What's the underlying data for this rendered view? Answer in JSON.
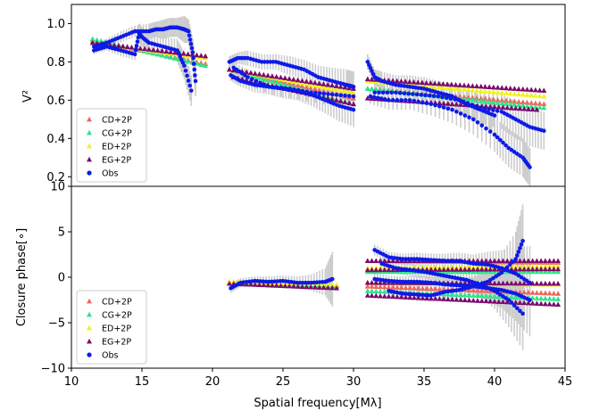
{
  "chart_data": [
    {
      "type": "scatter",
      "panel": "top",
      "ylabel": "V²",
      "xlim": [
        10,
        45
      ],
      "ylim": [
        0.15,
        1.1
      ],
      "yticks": [
        0.2,
        0.4,
        0.6,
        0.8,
        1.0
      ],
      "ytick_labels": [
        "0.2",
        "0.4",
        "0.6",
        "0.8",
        "1.0"
      ],
      "legend": {
        "placement": "lower-left",
        "entries": [
          {
            "label": "CD+2P",
            "marker": "triangle",
            "color": "#f0655a"
          },
          {
            "label": "CG+2P",
            "marker": "triangle",
            "color": "#25e889"
          },
          {
            "label": "ED+2P",
            "marker": "triangle",
            "color": "#f2f21a"
          },
          {
            "label": "EG+2P",
            "marker": "triangle",
            "color": "#7a0a6e"
          },
          {
            "label": "Obs",
            "marker": "dot",
            "color": "#0d1ae8"
          }
        ]
      },
      "series": [
        {
          "name": "CD+2P",
          "color": "#f0655a",
          "segments": [
            {
              "x": [
                11.5,
                19.5
              ],
              "y": [
                0.91,
                0.79
              ]
            },
            {
              "x": [
                21.2,
                30.0
              ],
              "y": [
                0.76,
                0.61
              ]
            },
            {
              "x": [
                31.0,
                43.5
              ],
              "y": [
                0.66,
                0.58
              ]
            }
          ]
        },
        {
          "name": "CG+2P",
          "color": "#25e889",
          "segments": [
            {
              "x": [
                11.5,
                19.5
              ],
              "y": [
                0.92,
                0.78
              ]
            },
            {
              "x": [
                21.2,
                30.0
              ],
              "y": [
                0.76,
                0.58
              ]
            },
            {
              "x": [
                31.0,
                43.5
              ],
              "y": [
                0.66,
                0.56
              ]
            }
          ]
        },
        {
          "name": "ED+2P",
          "color": "#f2f21a",
          "segments": [
            {
              "x": [
                11.5,
                19.5
              ],
              "y": [
                0.9,
                0.82
              ]
            },
            {
              "x": [
                21.2,
                30.0
              ],
              "y": [
                0.76,
                0.64
              ]
            },
            {
              "x": [
                31.0,
                43.5
              ],
              "y": [
                0.7,
                0.62
              ]
            }
          ]
        },
        {
          "name": "EG+2P",
          "color": "#7a0a6e",
          "segments": [
            {
              "x": [
                11.5,
                19.5
              ],
              "y": [
                0.9,
                0.83
              ]
            },
            {
              "x": [
                21.2,
                30.0
              ],
              "y": [
                0.76,
                0.66
              ]
            },
            {
              "x": [
                31.0,
                43.5
              ],
              "y": [
                0.71,
                0.65
              ]
            },
            {
              "x": [
                21.5,
                30.0
              ],
              "y": [
                0.72,
                0.58
              ]
            },
            {
              "x": [
                31.0,
                43.0
              ],
              "y": [
                0.61,
                0.55
              ]
            }
          ]
        }
      ],
      "observations": {
        "name": "Obs",
        "color": "#0d1ae8",
        "errorbar_color": "#cccccc",
        "segments": [
          {
            "x": [
              11.6,
              12.5,
              13.5,
              14.5,
              15.5,
              16.0,
              16.5,
              17.0,
              17.5,
              18.0,
              18.3,
              18.6,
              18.8
            ],
            "y": [
              0.88,
              0.9,
              0.93,
              0.96,
              0.96,
              0.97,
              0.97,
              0.98,
              0.98,
              0.97,
              0.96,
              0.85,
              0.7
            ],
            "err": [
              0.02,
              0.02,
              0.03,
              0.03,
              0.04,
              0.04,
              0.05,
              0.05,
              0.05,
              0.07,
              0.06,
              0.07,
              0.08
            ]
          },
          {
            "x": [
              11.6,
              12.5,
              13.5,
              14.5,
              14.8,
              15.0,
              15.5,
              16.5,
              17.5,
              18.0,
              18.5
            ],
            "y": [
              0.86,
              0.88,
              0.86,
              0.84,
              0.95,
              0.93,
              0.9,
              0.88,
              0.86,
              0.78,
              0.65
            ],
            "err": [
              0.02,
              0.02,
              0.03,
              0.03,
              0.05,
              0.05,
              0.05,
              0.05,
              0.06,
              0.07,
              0.08
            ]
          },
          {
            "x": [
              21.2,
              21.8,
              22.5,
              23.5,
              24.5,
              25.5,
              26.5,
              27.5,
              28.5,
              29.5,
              30.0
            ],
            "y": [
              0.8,
              0.82,
              0.82,
              0.8,
              0.8,
              0.78,
              0.76,
              0.72,
              0.7,
              0.68,
              0.67
            ],
            "err": [
              0.03,
              0.03,
              0.04,
              0.04,
              0.04,
              0.05,
              0.05,
              0.06,
              0.07,
              0.08,
              0.08
            ]
          },
          {
            "x": [
              21.3,
              22.0,
              23.0,
              24.0,
              25.0,
              26.0,
              27.0,
              28.0,
              29.0,
              30.0
            ],
            "y": [
              0.73,
              0.7,
              0.68,
              0.67,
              0.66,
              0.65,
              0.63,
              0.6,
              0.57,
              0.55
            ],
            "err": [
              0.03,
              0.03,
              0.04,
              0.04,
              0.05,
              0.05,
              0.06,
              0.07,
              0.08,
              0.09
            ]
          },
          {
            "x": [
              21.5,
              22.5,
              24.0,
              25.5,
              27.0,
              28.5,
              30.0
            ],
            "y": [
              0.77,
              0.72,
              0.67,
              0.66,
              0.64,
              0.63,
              0.62
            ],
            "err": [
              0.03,
              0.04,
              0.04,
              0.05,
              0.05,
              0.06,
              0.07
            ]
          },
          {
            "x": [
              31.0,
              31.5,
              32.0,
              33.0,
              34.0,
              35.0,
              36.0,
              37.0,
              38.0,
              39.0,
              40.0
            ],
            "y": [
              0.8,
              0.72,
              0.7,
              0.68,
              0.67,
              0.66,
              0.64,
              0.62,
              0.58,
              0.55,
              0.52
            ],
            "err": [
              0.04,
              0.04,
              0.05,
              0.05,
              0.06,
              0.06,
              0.06,
              0.07,
              0.07,
              0.08,
              0.09
            ]
          },
          {
            "x": [
              31.2,
              32.5,
              34.0,
              35.5,
              37.0,
              38.5,
              40.0,
              41.0,
              42.0,
              42.5
            ],
            "y": [
              0.62,
              0.6,
              0.6,
              0.58,
              0.55,
              0.5,
              0.42,
              0.35,
              0.3,
              0.25
            ],
            "err": [
              0.04,
              0.05,
              0.05,
              0.06,
              0.07,
              0.08,
              0.09,
              0.1,
              0.1,
              0.1
            ]
          },
          {
            "x": [
              31.5,
              33.0,
              34.5,
              36.0,
              37.5,
              39.0,
              40.5,
              41.5,
              42.5,
              43.5
            ],
            "y": [
              0.64,
              0.64,
              0.63,
              0.62,
              0.6,
              0.56,
              0.54,
              0.5,
              0.46,
              0.44
            ],
            "err": [
              0.04,
              0.05,
              0.05,
              0.06,
              0.07,
              0.08,
              0.09,
              0.1,
              0.1,
              0.1
            ]
          }
        ]
      }
    },
    {
      "type": "scatter",
      "panel": "bottom",
      "ylabel": "Closure phase[∘]",
      "xlabel": "Spatial frequency[Mλ]",
      "xlim": [
        10,
        45
      ],
      "ylim": [
        -10,
        10
      ],
      "xticks": [
        10,
        15,
        20,
        25,
        30,
        35,
        40,
        45
      ],
      "xtick_labels": [
        "10",
        "15",
        "20",
        "25",
        "30",
        "35",
        "40",
        "45"
      ],
      "yticks": [
        -10,
        -5,
        0,
        5,
        10
      ],
      "ytick_labels": [
        "−10",
        "−5",
        "0",
        "5",
        "10"
      ],
      "legend": {
        "placement": "lower-left",
        "entries": [
          {
            "label": "CD+2P",
            "marker": "triangle",
            "color": "#f0655a"
          },
          {
            "label": "CG+2P",
            "marker": "triangle",
            "color": "#25e889"
          },
          {
            "label": "ED+2P",
            "marker": "triangle",
            "color": "#f2f21a"
          },
          {
            "label": "EG+2P",
            "marker": "triangle",
            "color": "#7a0a6e"
          },
          {
            "label": "Obs",
            "marker": "dot",
            "color": "#0d1ae8"
          }
        ]
      },
      "series": [
        {
          "name": "CD+2P",
          "color": "#f0655a",
          "segments": [
            {
              "x": [
                21.2,
                28.8
              ],
              "y": [
                -0.5,
                -0.9
              ]
            },
            {
              "x": [
                31.0,
                44.5
              ],
              "y": [
                1.8,
                1.6
              ]
            },
            {
              "x": [
                31.0,
                44.5
              ],
              "y": [
                -1.0,
                -1.8
              ]
            }
          ]
        },
        {
          "name": "CG+2P",
          "color": "#25e889",
          "segments": [
            {
              "x": [
                21.2,
                28.8
              ],
              "y": [
                -0.6,
                -1.0
              ]
            },
            {
              "x": [
                31.0,
                44.5
              ],
              "y": [
                0.6,
                0.6
              ]
            },
            {
              "x": [
                31.0,
                44.5
              ],
              "y": [
                -1.5,
                -2.4
              ]
            }
          ]
        },
        {
          "name": "ED+2P",
          "color": "#f2f21a",
          "segments": [
            {
              "x": [
                21.2,
                28.8
              ],
              "y": [
                -0.5,
                -0.8
              ]
            },
            {
              "x": [
                31.0,
                44.5
              ],
              "y": [
                1.0,
                1.2
              ]
            },
            {
              "x": [
                31.0,
                44.5
              ],
              "y": [
                -0.6,
                -0.8
              ]
            }
          ]
        },
        {
          "name": "EG+2P",
          "color": "#7a0a6e",
          "segments": [
            {
              "x": [
                21.2,
                28.8
              ],
              "y": [
                -0.7,
                -1.2
              ]
            },
            {
              "x": [
                31.0,
                44.5
              ],
              "y": [
                1.8,
                1.8
              ]
            },
            {
              "x": [
                31.0,
                44.5
              ],
              "y": [
                0.8,
                0.9
              ]
            },
            {
              "x": [
                31.0,
                44.5
              ],
              "y": [
                -0.6,
                -0.7
              ]
            },
            {
              "x": [
                31.0,
                44.5
              ],
              "y": [
                -2.0,
                -3.0
              ]
            }
          ]
        }
      ],
      "observations": {
        "name": "Obs",
        "color": "#0d1ae8",
        "errorbar_color": "#cccccc",
        "segments": [
          {
            "x": [
              21.3,
              22.0,
              23.0,
              24.0,
              25.0,
              26.0,
              27.0,
              28.0,
              28.5
            ],
            "y": [
              -1.2,
              -0.6,
              -0.4,
              -0.5,
              -0.4,
              -0.6,
              -0.6,
              -0.5,
              -0.2
            ],
            "err": [
              0.5,
              0.5,
              0.5,
              0.6,
              0.6,
              0.7,
              0.9,
              1.5,
              3.0
            ]
          },
          {
            "x": [
              31.5,
              32.5,
              33.5,
              34.5,
              35.5,
              36.5,
              37.5,
              38.5,
              39.5,
              40.5,
              41.5,
              42.5
            ],
            "y": [
              3.0,
              2.2,
              2.0,
              2.0,
              1.9,
              1.8,
              1.8,
              1.5,
              1.4,
              1.0,
              0.4,
              -0.6
            ],
            "err": [
              0.6,
              0.6,
              0.6,
              0.7,
              0.7,
              0.8,
              0.9,
              1.0,
              1.4,
              2.0,
              3.0,
              4.0
            ]
          },
          {
            "x": [
              31.5,
              32.5,
              33.5,
              34.5,
              35.5,
              36.5,
              37.5,
              38.5,
              39.5,
              40.5,
              41.5,
              42.5
            ],
            "y": [
              -0.2,
              -0.4,
              -0.5,
              -0.5,
              -0.6,
              -0.8,
              -0.9,
              -1.0,
              -1.2,
              -1.4,
              -1.8,
              -2.5
            ],
            "err": [
              0.6,
              0.6,
              0.6,
              0.7,
              0.7,
              0.8,
              0.9,
              1.0,
              1.4,
              2.0,
              3.0,
              4.0
            ]
          },
          {
            "x": [
              32.0,
              33.0,
              34.0,
              35.0,
              36.0,
              37.0,
              38.0,
              39.0,
              40.0,
              41.0,
              42.0
            ],
            "y": [
              1.5,
              1.0,
              0.8,
              0.6,
              0.3,
              0.0,
              -0.3,
              -0.8,
              -1.5,
              -2.5,
              -4.0
            ],
            "err": [
              0.6,
              0.6,
              0.7,
              0.7,
              0.8,
              0.9,
              1.0,
              1.3,
              2.0,
              3.0,
              4.0
            ]
          },
          {
            "x": [
              32.5,
              33.5,
              34.5,
              35.5,
              36.5,
              37.5,
              38.5,
              39.5,
              40.5,
              41.5,
              42.0
            ],
            "y": [
              -1.5,
              -1.8,
              -1.9,
              -2.0,
              -1.6,
              -1.4,
              -1.0,
              -0.5,
              0.5,
              2.0,
              4.0
            ],
            "err": [
              0.6,
              0.6,
              0.7,
              0.7,
              0.8,
              0.9,
              1.0,
              1.3,
              2.0,
              3.0,
              4.0
            ]
          }
        ]
      }
    }
  ]
}
